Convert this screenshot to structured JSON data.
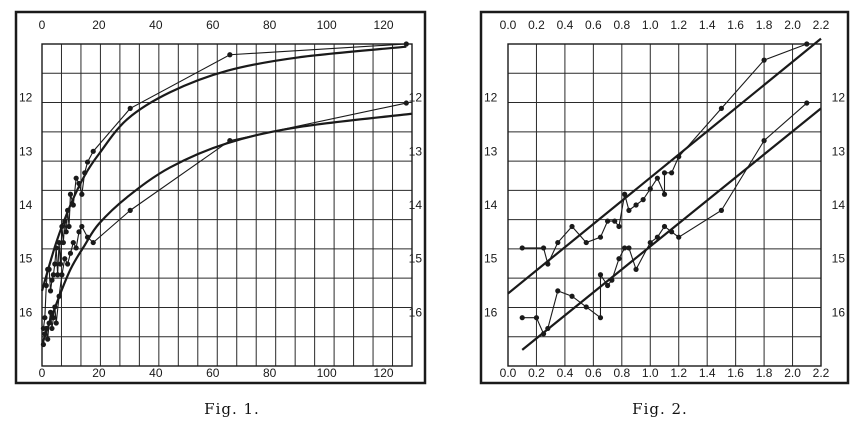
{
  "colors": {
    "ink": "#1a1a1a",
    "grid": "#2a2a2a",
    "paper": "#ffffff"
  },
  "chart_data": [
    {
      "type": "scatter",
      "caption": "Fig. 1.",
      "x_ticks": [
        "0",
        "20",
        "40",
        "60",
        "80",
        "100",
        "120"
      ],
      "y_ticks": [
        "12",
        "13",
        "14",
        "15",
        "16"
      ],
      "xlim": [
        0,
        130
      ],
      "ylim": [
        11.0,
        17.0
      ],
      "y_reversed": true,
      "grid": true,
      "series": [
        {
          "marker": "dot",
          "line": "broken",
          "points": [
            [
              0.5,
              16.3
            ],
            [
              1,
              16.1
            ],
            [
              1.5,
              15.5
            ],
            [
              2,
              15.2
            ],
            [
              2.5,
              15.2
            ],
            [
              3,
              15.6
            ],
            [
              3.5,
              15.4
            ],
            [
              4,
              15.3
            ],
            [
              4.5,
              15.1
            ],
            [
              5,
              14.8
            ],
            [
              5.5,
              15.3
            ],
            [
              6,
              14.7
            ],
            [
              6.5,
              15.1
            ],
            [
              7,
              14.4
            ],
            [
              7.5,
              14.7
            ],
            [
              8,
              14.3
            ],
            [
              8.5,
              14.5
            ],
            [
              9,
              14.1
            ],
            [
              9.5,
              14.4
            ],
            [
              10,
              13.8
            ],
            [
              11,
              14.0
            ],
            [
              12,
              13.5
            ],
            [
              13,
              13.6
            ],
            [
              14,
              13.8
            ],
            [
              15,
              13.4
            ],
            [
              16,
              13.2
            ],
            [
              18,
              13.0
            ],
            [
              31,
              12.2
            ],
            [
              66,
              11.2
            ],
            [
              128,
              11.0
            ]
          ]
        },
        {
          "marker": "dot",
          "line": "broken",
          "points": [
            [
              0.5,
              16.6
            ],
            [
              1,
              16.4
            ],
            [
              1.5,
              16.3
            ],
            [
              2,
              16.5
            ],
            [
              2.5,
              16.2
            ],
            [
              3,
              16.0
            ],
            [
              3.5,
              16.3
            ],
            [
              4,
              16.1
            ],
            [
              4.5,
              15.9
            ],
            [
              5,
              16.2
            ],
            [
              6,
              15.7
            ],
            [
              7,
              15.3
            ],
            [
              8,
              15.0
            ],
            [
              9,
              15.1
            ],
            [
              10,
              14.9
            ],
            [
              11,
              14.7
            ],
            [
              12,
              14.8
            ],
            [
              13,
              14.5
            ],
            [
              14,
              14.4
            ],
            [
              16,
              14.6
            ],
            [
              18,
              14.7
            ],
            [
              31,
              14.1
            ],
            [
              66,
              12.8
            ],
            [
              128,
              12.1
            ]
          ]
        },
        {
          "marker": "none",
          "line": "smooth",
          "points": [
            [
              0,
              15.6
            ],
            [
              5,
              14.7
            ],
            [
              10,
              14.0
            ],
            [
              15,
              13.45
            ],
            [
              20,
              13.05
            ],
            [
              30,
              12.4
            ],
            [
              45,
              11.9
            ],
            [
              65,
              11.5
            ],
            [
              90,
              11.25
            ],
            [
              128,
              11.05
            ]
          ]
        },
        {
          "marker": "none",
          "line": "smooth",
          "points": [
            [
              0,
              16.6
            ],
            [
              5,
              15.85
            ],
            [
              10,
              15.2
            ],
            [
              15,
              14.75
            ],
            [
              20,
              14.35
            ],
            [
              30,
              13.85
            ],
            [
              45,
              13.3
            ],
            [
              65,
              12.85
            ],
            [
              90,
              12.55
            ],
            [
              130,
              12.3
            ]
          ]
        }
      ]
    },
    {
      "type": "scatter",
      "caption": "Fig. 2.",
      "x_ticks": [
        "0.0",
        "0.2",
        "0.4",
        "0.6",
        "0.8",
        "1.0",
        "1.2",
        "1.4",
        "1.6",
        "1.8",
        "2.0",
        "2.2"
      ],
      "y_ticks": [
        "12",
        "13",
        "14",
        "15",
        "16"
      ],
      "xlim": [
        0.0,
        2.2
      ],
      "ylim": [
        11.0,
        17.0
      ],
      "y_reversed": true,
      "grid": true,
      "series": [
        {
          "marker": "dot",
          "line": "broken",
          "points": [
            [
              0.1,
              14.8
            ],
            [
              0.25,
              14.8
            ],
            [
              0.28,
              15.1
            ],
            [
              0.35,
              14.7
            ],
            [
              0.45,
              14.4
            ],
            [
              0.55,
              14.7
            ],
            [
              0.65,
              14.6
            ],
            [
              0.7,
              14.3
            ],
            [
              0.75,
              14.3
            ],
            [
              0.78,
              14.4
            ],
            [
              0.82,
              13.8
            ],
            [
              0.85,
              14.1
            ],
            [
              0.9,
              14.0
            ],
            [
              0.95,
              13.9
            ],
            [
              1.0,
              13.7
            ],
            [
              1.05,
              13.5
            ],
            [
              1.1,
              13.8
            ],
            [
              1.1,
              13.4
            ],
            [
              1.15,
              13.4
            ],
            [
              1.2,
              13.1
            ],
            [
              1.5,
              12.2
            ],
            [
              1.8,
              11.3
            ],
            [
              2.1,
              11.0
            ]
          ]
        },
        {
          "marker": "dot",
          "line": "broken",
          "points": [
            [
              0.1,
              16.1
            ],
            [
              0.2,
              16.1
            ],
            [
              0.25,
              16.4
            ],
            [
              0.28,
              16.3
            ],
            [
              0.35,
              15.6
            ],
            [
              0.45,
              15.7
            ],
            [
              0.55,
              15.9
            ],
            [
              0.65,
              16.1
            ],
            [
              0.65,
              15.3
            ],
            [
              0.7,
              15.5
            ],
            [
              0.73,
              15.4
            ],
            [
              0.78,
              15.0
            ],
            [
              0.82,
              14.8
            ],
            [
              0.85,
              14.8
            ],
            [
              0.9,
              15.2
            ],
            [
              1.0,
              14.7
            ],
            [
              1.05,
              14.6
            ],
            [
              1.1,
              14.4
            ],
            [
              1.15,
              14.5
            ],
            [
              1.2,
              14.6
            ],
            [
              1.5,
              14.1
            ],
            [
              1.8,
              12.8
            ],
            [
              2.1,
              12.1
            ]
          ]
        },
        {
          "marker": "none",
          "line": "straight",
          "points": [
            [
              0.0,
              15.65
            ],
            [
              2.2,
              10.9
            ]
          ]
        },
        {
          "marker": "none",
          "line": "straight",
          "points": [
            [
              0.1,
              16.7
            ],
            [
              2.2,
              12.2
            ]
          ]
        }
      ]
    }
  ]
}
